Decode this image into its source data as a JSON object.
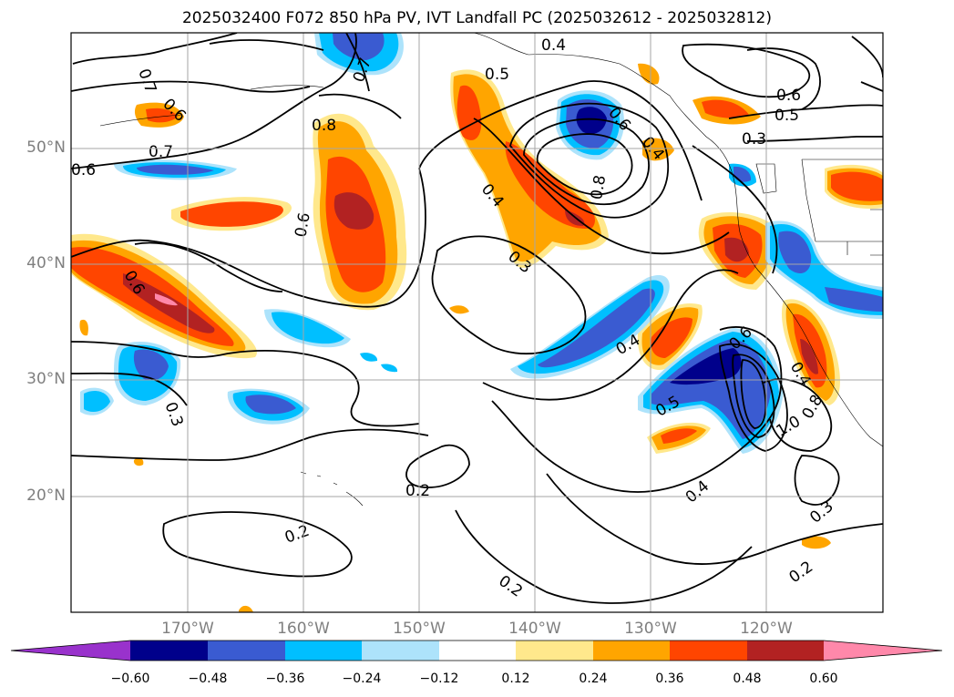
{
  "title": "2025032400 F072 850 hPa PV, IVT Landfall PC (2025032612 - 2025032812)",
  "map": {
    "lon_range": [
      -180,
      -110
    ],
    "lat_range": [
      10,
      60
    ],
    "lat_labels": [
      "50°N",
      "40°N",
      "30°N",
      "20°N"
    ],
    "lon_labels": [
      "170°W",
      "160°W",
      "150°W",
      "140°W",
      "130°W",
      "120°W"
    ]
  },
  "contour_labels": [
    "0.7",
    "0.6",
    "0.7",
    "0.6",
    "0.8",
    "0.5",
    "0.4",
    "0.6",
    "0.6",
    "0.7",
    "0.4",
    "0.3",
    "0.8",
    "0.6",
    "0.5",
    "0.3",
    "0.6",
    "0.4",
    "0.4",
    "0.6",
    "0.5",
    "1.0",
    "0.8",
    "0.4",
    "0.3",
    "0.2",
    "0.2",
    "0.2",
    "0.2",
    "0.3",
    "0.4"
  ],
  "colorbar": {
    "ticks": [
      "−0.60",
      "−0.48",
      "−0.36",
      "−0.24",
      "−0.12",
      "0.12",
      "0.24",
      "0.36",
      "0.48",
      "0.60"
    ],
    "colors": [
      "#9932cc",
      "#00008b",
      "#3a5bd1",
      "#00bfff",
      "#ade3fb",
      "#ffffff",
      "#ffe88c",
      "#ffa500",
      "#ff4500",
      "#b22222",
      "#ff88aa",
      "#ff88aa"
    ]
  }
}
